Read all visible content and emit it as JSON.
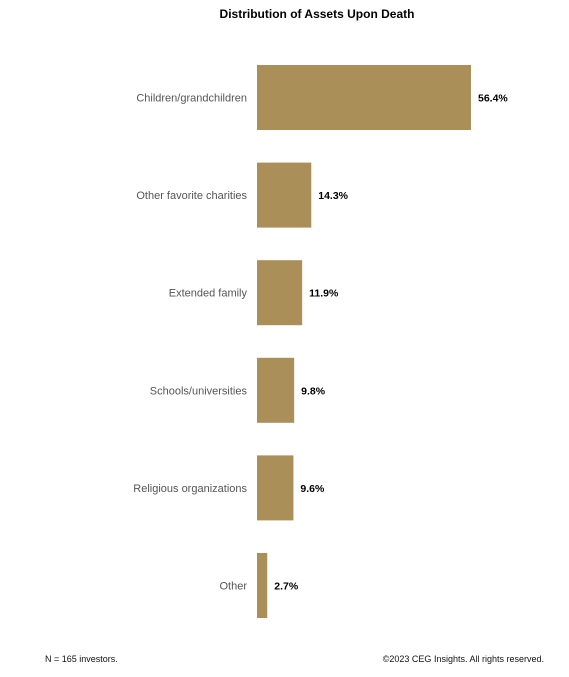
{
  "chart_data": {
    "type": "bar",
    "orientation": "horizontal",
    "title": "Distribution of Assets Upon Death",
    "categories": [
      "Children/grandchildren",
      "Other favorite charities",
      "Extended family",
      "Schools/universities",
      "Religious organizations",
      "Other"
    ],
    "values": [
      56.4,
      14.3,
      11.9,
      9.8,
      9.6,
      2.7
    ],
    "value_labels": [
      "56.4%",
      "14.3%",
      "11.9%",
      "9.8%",
      "9.6%",
      "2.7%"
    ],
    "xlim": [
      0,
      56.4
    ],
    "grid": false,
    "legend": "none",
    "bar_color": "#AB8F59"
  },
  "footer": {
    "note": "N = 165 investors.",
    "copyright": "©2023 CEG Insights. All rights reserved."
  }
}
